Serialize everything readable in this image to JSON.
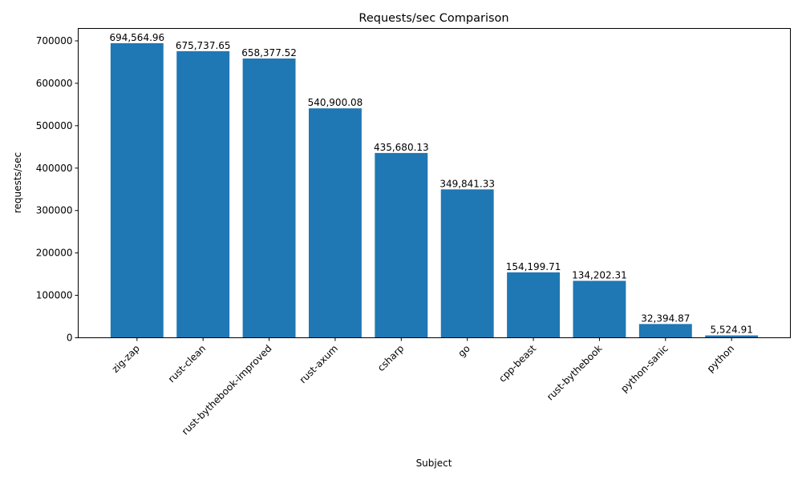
{
  "chart_data": {
    "type": "bar",
    "title": "Requests/sec Comparison",
    "xlabel": "Subject",
    "ylabel": "requests/sec",
    "categories": [
      "zig-zap",
      "rust-clean",
      "rust-bythebook-improved",
      "rust-axum",
      "csharp",
      "go",
      "cpp-beast",
      "rust-bythebook",
      "python-sanic",
      "python"
    ],
    "values": [
      694564.96,
      675737.65,
      658377.52,
      540900.08,
      435680.13,
      349841.33,
      154199.71,
      134202.31,
      32394.87,
      5524.91
    ],
    "data_labels": [
      "694,564.96",
      "675,737.65",
      "658,377.52",
      "540,900.08",
      "435,680.13",
      "349,841.33",
      "154,199.71",
      "134,202.31",
      "32,394.87",
      "5,524.91"
    ],
    "ylim": [
      0,
      729293
    ],
    "yticks": [
      0,
      100000,
      200000,
      300000,
      400000,
      500000,
      600000,
      700000
    ],
    "ytick_labels": [
      "0",
      "100000",
      "200000",
      "300000",
      "400000",
      "500000",
      "600000",
      "700000"
    ],
    "grid": false,
    "bar_color": "#1f77b4"
  }
}
